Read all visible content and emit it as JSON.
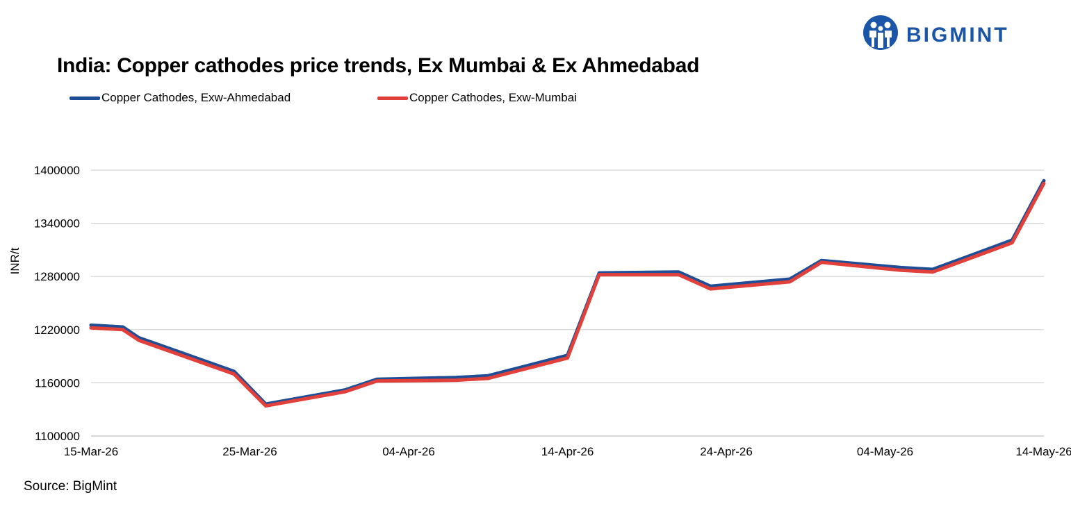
{
  "brand": {
    "name": "BIGMINT"
  },
  "source_text": "Source: BigMint",
  "colors": {
    "ahmedabad": "#1f4e96",
    "mumbai": "#e2403a",
    "grid": "#d4d4d4",
    "brand": "#1b55a8"
  },
  "chart_data": {
    "type": "line",
    "title": "India: Copper cathodes price trends, Ex Mumbai & Ex Ahmedabad",
    "xlabel": "",
    "ylabel": "INR/t",
    "ylim": [
      1100000,
      1400000
    ],
    "yticks": [
      1100000,
      1160000,
      1220000,
      1280000,
      1340000,
      1400000
    ],
    "xlim": [
      "2026-03-15",
      "2026-05-14"
    ],
    "xticks": [
      "15-Mar-26",
      "25-Mar-26",
      "04-Apr-26",
      "14-Apr-26",
      "24-Apr-26",
      "04-May-26",
      "14-May-26"
    ],
    "grid": true,
    "legend_position": "top-left",
    "x": [
      "2026-03-15",
      "2026-03-17",
      "2026-03-18",
      "2026-03-24",
      "2026-03-26",
      "2026-03-31",
      "2026-04-02",
      "2026-04-07",
      "2026-04-09",
      "2026-04-14",
      "2026-04-16",
      "2026-04-21",
      "2026-04-23",
      "2026-04-28",
      "2026-04-30",
      "2026-05-05",
      "2026-05-07",
      "2026-05-12",
      "2026-05-14"
    ],
    "series": [
      {
        "name": "Copper Cathodes, Exw-Ahmedabad",
        "values": [
          1225000,
          1223000,
          1211000,
          1173000,
          1136000,
          1152000,
          1164000,
          1166000,
          1168000,
          1191000,
          1284000,
          1285000,
          1269000,
          1277000,
          1298000,
          1290000,
          1288000,
          1321000,
          1388000
        ]
      },
      {
        "name": "Copper Cathodes, Exw-Mumbai",
        "values": [
          1222000,
          1220000,
          1208000,
          1170000,
          1134000,
          1150000,
          1162000,
          1163000,
          1165000,
          1188000,
          1282000,
          1282000,
          1266000,
          1274000,
          1296000,
          1287000,
          1285000,
          1318000,
          1385000
        ]
      }
    ]
  }
}
